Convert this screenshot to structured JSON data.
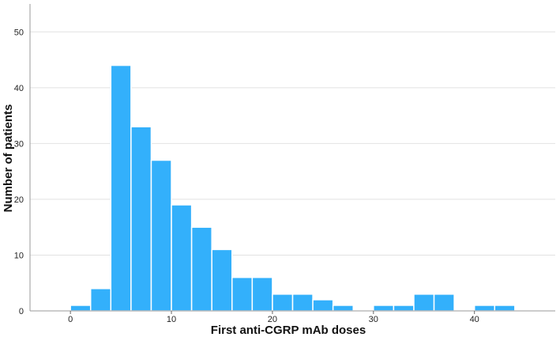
{
  "chart_data": {
    "type": "bar",
    "title": "",
    "xlabel": "First anti-CGRP mAb doses",
    "ylabel": "Number of patients",
    "xlim": [
      -4,
      48
    ],
    "ylim": [
      0,
      55
    ],
    "bin_width": 2,
    "x_ticks": [
      0,
      10,
      20,
      30,
      40
    ],
    "y_ticks": [
      0,
      10,
      20,
      30,
      40,
      50
    ],
    "grid": "horizontal",
    "bar_color": "#33b0fb",
    "bins": [
      {
        "x0": 0,
        "x1": 2,
        "value": 1
      },
      {
        "x0": 2,
        "x1": 4,
        "value": 4
      },
      {
        "x0": 4,
        "x1": 6,
        "value": 44
      },
      {
        "x0": 6,
        "x1": 8,
        "value": 33
      },
      {
        "x0": 8,
        "x1": 10,
        "value": 27
      },
      {
        "x0": 10,
        "x1": 12,
        "value": 19
      },
      {
        "x0": 12,
        "x1": 14,
        "value": 15
      },
      {
        "x0": 14,
        "x1": 16,
        "value": 11
      },
      {
        "x0": 16,
        "x1": 18,
        "value": 6
      },
      {
        "x0": 18,
        "x1": 20,
        "value": 6
      },
      {
        "x0": 20,
        "x1": 22,
        "value": 3
      },
      {
        "x0": 22,
        "x1": 24,
        "value": 3
      },
      {
        "x0": 24,
        "x1": 26,
        "value": 2
      },
      {
        "x0": 26,
        "x1": 28,
        "value": 1
      },
      {
        "x0": 30,
        "x1": 32,
        "value": 1
      },
      {
        "x0": 32,
        "x1": 34,
        "value": 1
      },
      {
        "x0": 34,
        "x1": 36,
        "value": 3
      },
      {
        "x0": 36,
        "x1": 38,
        "value": 3
      },
      {
        "x0": 40,
        "x1": 42,
        "value": 1
      },
      {
        "x0": 42,
        "x1": 44,
        "value": 1
      }
    ]
  }
}
